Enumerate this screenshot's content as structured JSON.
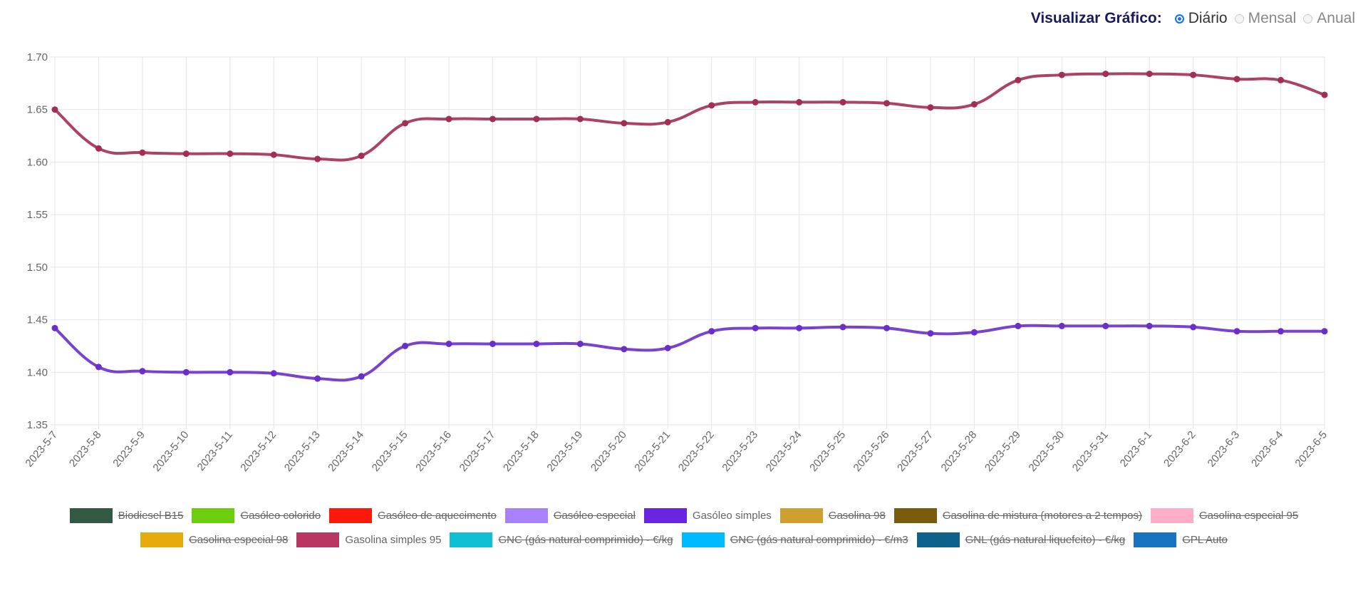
{
  "controls": {
    "label": "Visualizar Gráfico:",
    "options": [
      {
        "label": "Diário",
        "selected": true
      },
      {
        "label": "Mensal",
        "selected": false
      },
      {
        "label": "Anual",
        "selected": false
      }
    ]
  },
  "chart_data": {
    "type": "line",
    "ylim": [
      1.35,
      1.7
    ],
    "yticks": [
      "1.70",
      "1.65",
      "1.60",
      "1.55",
      "1.50",
      "1.45",
      "1.40",
      "1.35"
    ],
    "grid": true,
    "legend_placement": "bottom",
    "categories": [
      "2023-5-7",
      "2023-5-8",
      "2023-5-9",
      "2023-5-10",
      "2023-5-11",
      "2023-5-12",
      "2023-5-13",
      "2023-5-14",
      "2023-5-15",
      "2023-5-16",
      "2023-5-17",
      "2023-5-18",
      "2023-5-19",
      "2023-5-20",
      "2023-5-21",
      "2023-5-22",
      "2023-5-23",
      "2023-5-24",
      "2023-5-25",
      "2023-5-26",
      "2023-5-27",
      "2023-5-28",
      "2023-5-29",
      "2023-5-30",
      "2023-5-31",
      "2023-6-1",
      "2023-6-2",
      "2023-6-3",
      "2023-6-4",
      "2023-6-5"
    ],
    "series": [
      {
        "name": "Gasolina simples 95",
        "color": "#a12f55",
        "values": [
          1.65,
          1.613,
          1.609,
          1.608,
          1.608,
          1.607,
          1.603,
          1.606,
          1.637,
          1.641,
          1.641,
          1.641,
          1.641,
          1.637,
          1.638,
          1.654,
          1.657,
          1.657,
          1.657,
          1.656,
          1.652,
          1.655,
          1.678,
          1.683,
          1.684,
          1.684,
          1.683,
          1.679,
          1.678,
          1.664
        ]
      },
      {
        "name": "Gasóleo simples",
        "color": "#6a2fc9",
        "values": [
          1.442,
          1.405,
          1.401,
          1.4,
          1.4,
          1.399,
          1.394,
          1.396,
          1.425,
          1.427,
          1.427,
          1.427,
          1.427,
          1.422,
          1.423,
          1.439,
          1.442,
          1.442,
          1.443,
          1.442,
          1.437,
          1.438,
          1.444,
          1.444,
          1.444,
          1.444,
          1.443,
          1.439,
          1.439,
          1.439
        ]
      }
    ],
    "legend": [
      {
        "name": "Biodiesel B15",
        "color": "#2b4d3a",
        "hidden": true
      },
      {
        "name": "Gasóleo colorido",
        "color": "#5fb30e",
        "hidden": true
      },
      {
        "name": "Gasóleo de aquecimento",
        "color": "#e0150a",
        "hidden": true
      },
      {
        "name": "Gasóleo especial",
        "color": "#9370db",
        "hidden": true
      },
      {
        "name": "Gasóleo simples",
        "color": "#5b21c4",
        "hidden": false
      },
      {
        "name": "Gasolina 98",
        "color": "#b38b2a",
        "hidden": true
      },
      {
        "name": "Gasolina de mistura (motores a 2 tempos)",
        "color": "#6b4f0a",
        "hidden": true
      },
      {
        "name": "Gasolina especial 95",
        "color": "#e097ad",
        "hidden": true
      },
      {
        "name": "Gasolina especial 98",
        "color": "#c7960a",
        "hidden": true
      },
      {
        "name": "Gasolina simples 95",
        "color": "#a12f55",
        "hidden": false
      },
      {
        "name": "GNC (gás natural comprimido) - €/kg",
        "color": "#0da6b8",
        "hidden": true
      },
      {
        "name": "GNC (gás natural comprimido) - €/m3",
        "color": "#00a2ee",
        "hidden": true
      },
      {
        "name": "GNL (gás natural liquefeito) - €/kg",
        "color": "#0c5478",
        "hidden": true
      },
      {
        "name": "GPL Auto",
        "color": "#1565a8",
        "hidden": true
      }
    ]
  }
}
